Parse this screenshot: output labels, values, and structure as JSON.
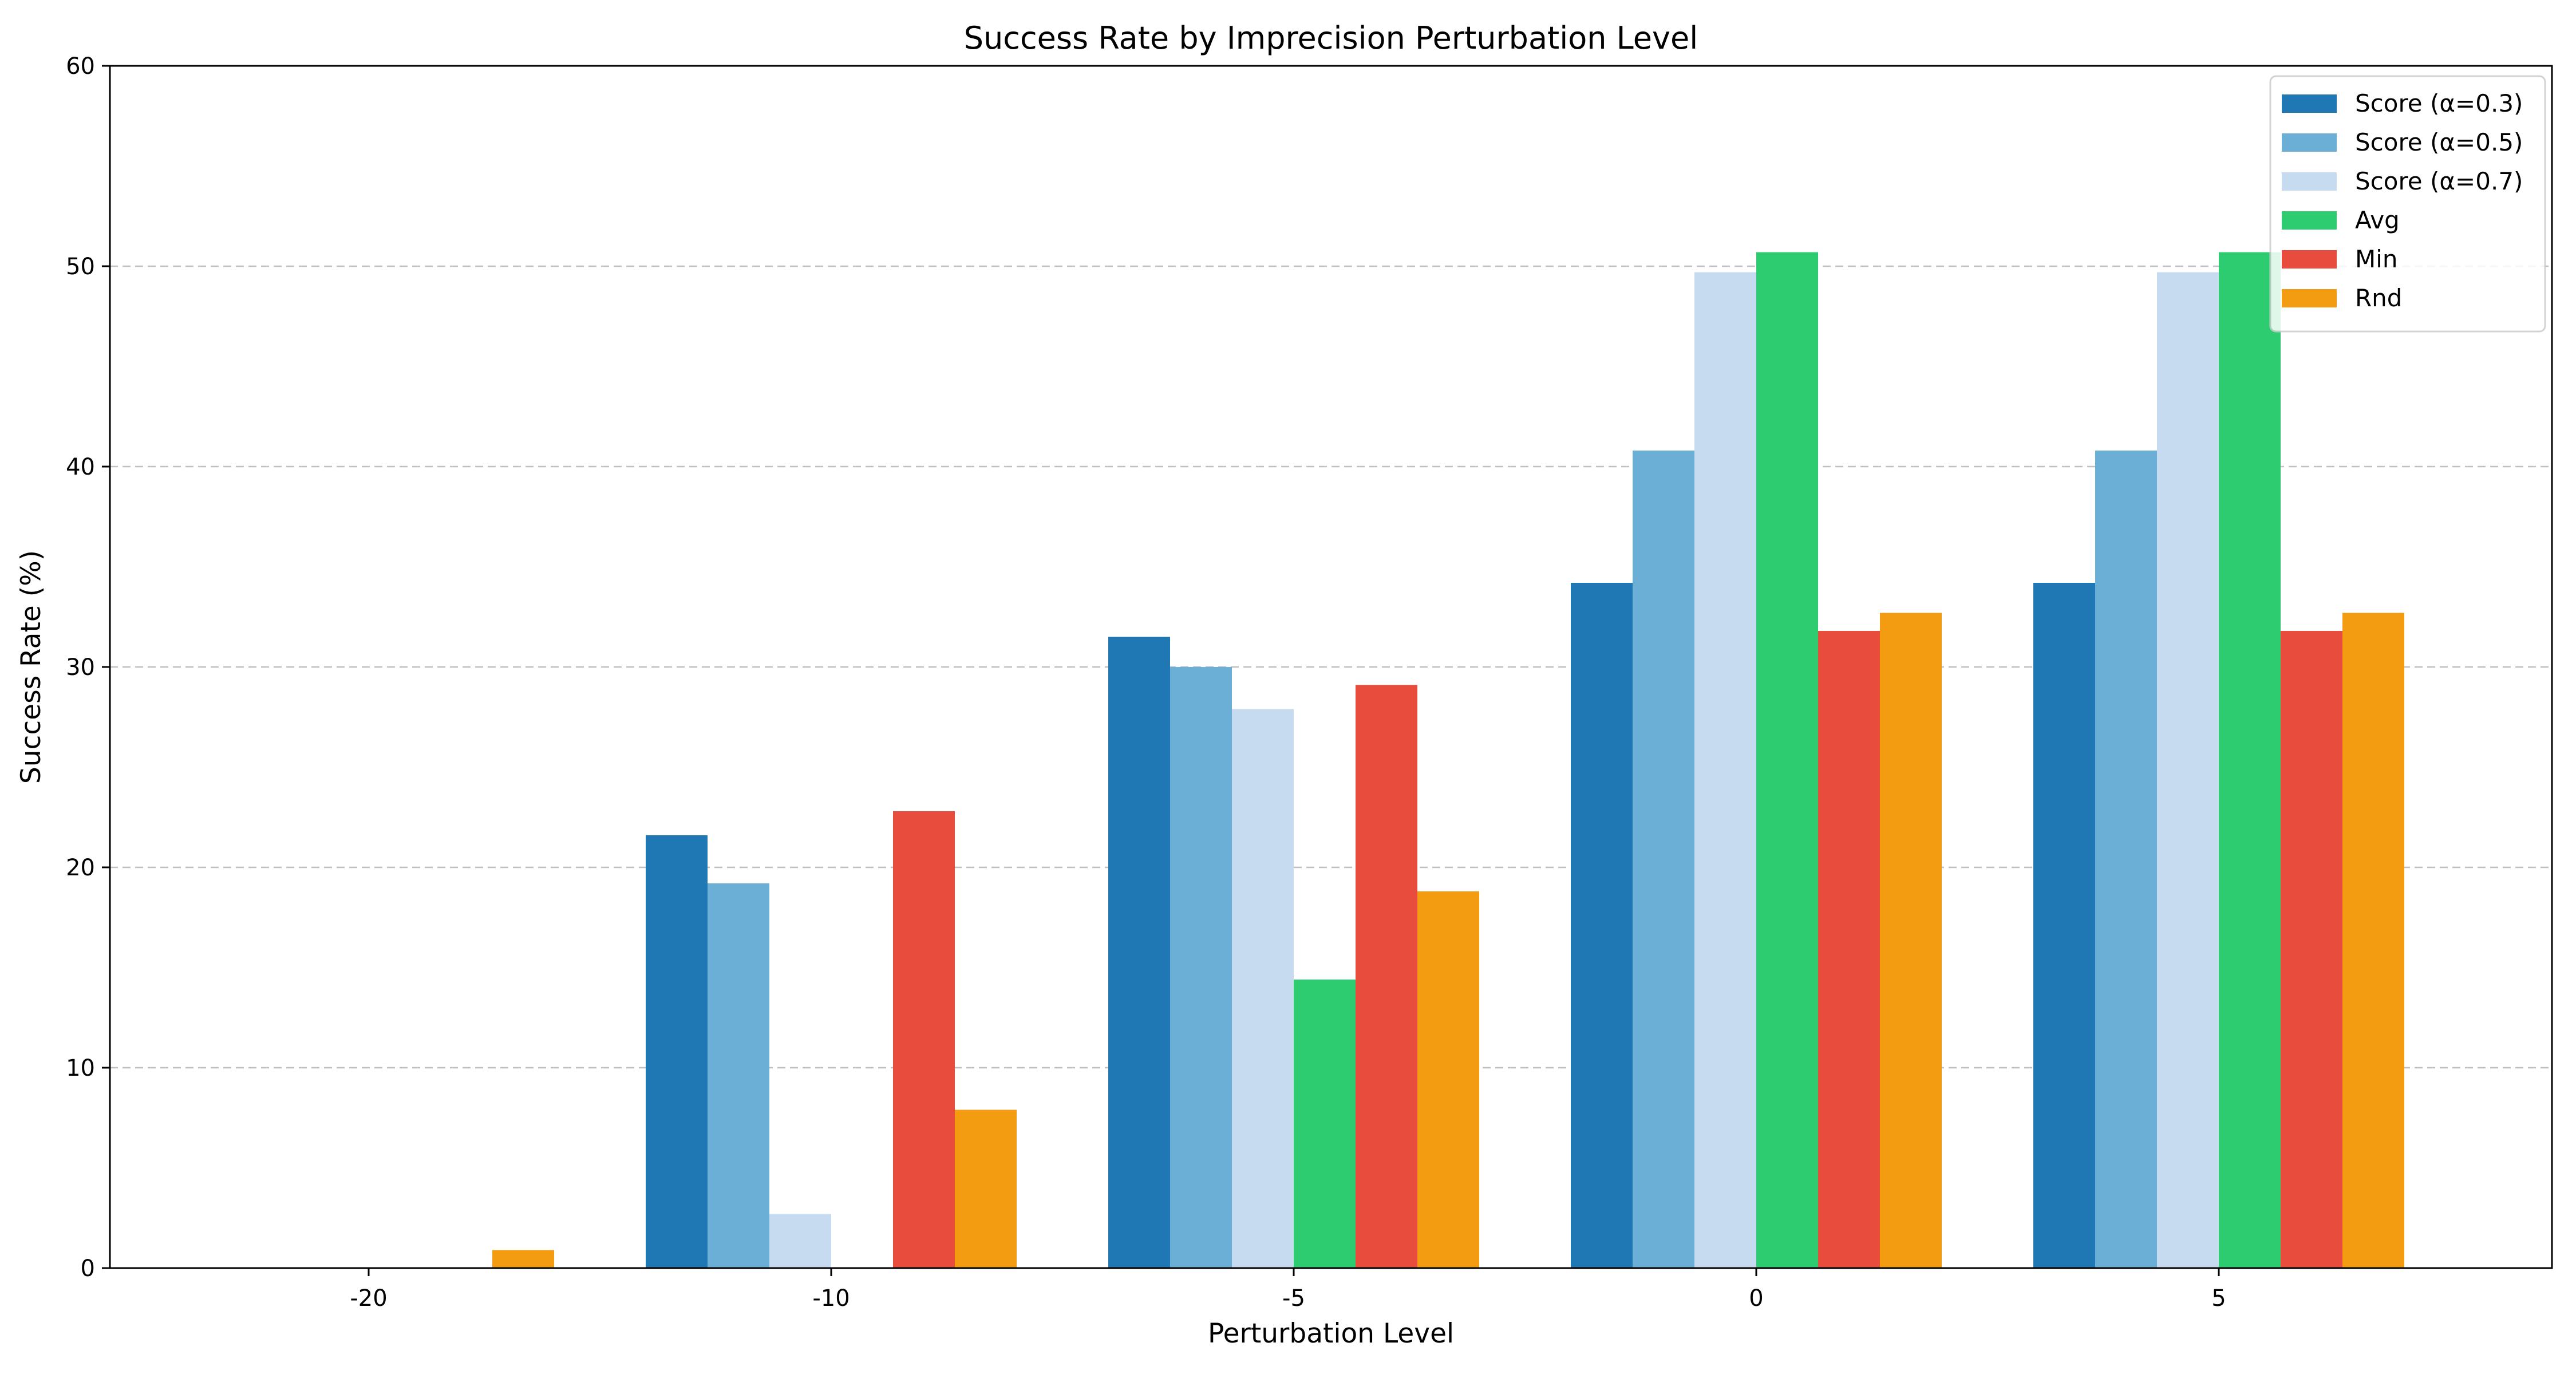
{
  "chart_data": {
    "type": "bar",
    "title": "Success Rate by Imprecision Perturbation Level",
    "xlabel": "Perturbation Level",
    "ylabel": "Success Rate (%)",
    "categories": [
      "-20",
      "-10",
      "-5",
      "0",
      "5"
    ],
    "ylim": [
      0,
      60
    ],
    "yticks": [
      "0",
      "10",
      "20",
      "30",
      "40",
      "50",
      "60"
    ],
    "grid": "y-dashed",
    "legend_position": "top-right",
    "series": [
      {
        "name": "Score (α=0.3)",
        "color": "#1f77b4",
        "values": [
          0,
          21.6,
          31.5,
          34.2,
          34.2
        ]
      },
      {
        "name": "Score (α=0.5)",
        "color": "#6baed6",
        "values": [
          0,
          19.2,
          30.0,
          40.8,
          40.8
        ]
      },
      {
        "name": "Score (α=0.7)",
        "color": "#c6dbef",
        "values": [
          0,
          2.7,
          27.9,
          49.7,
          49.7
        ]
      },
      {
        "name": "Avg",
        "color": "#2ecc71",
        "values": [
          0,
          0,
          14.4,
          50.7,
          50.7
        ]
      },
      {
        "name": "Min",
        "color": "#e74c3c",
        "values": [
          0,
          22.8,
          29.1,
          31.8,
          31.8
        ]
      },
      {
        "name": "Rnd",
        "color": "#f39c12",
        "values": [
          0.9,
          7.9,
          18.8,
          32.7,
          32.7
        ]
      }
    ]
  }
}
